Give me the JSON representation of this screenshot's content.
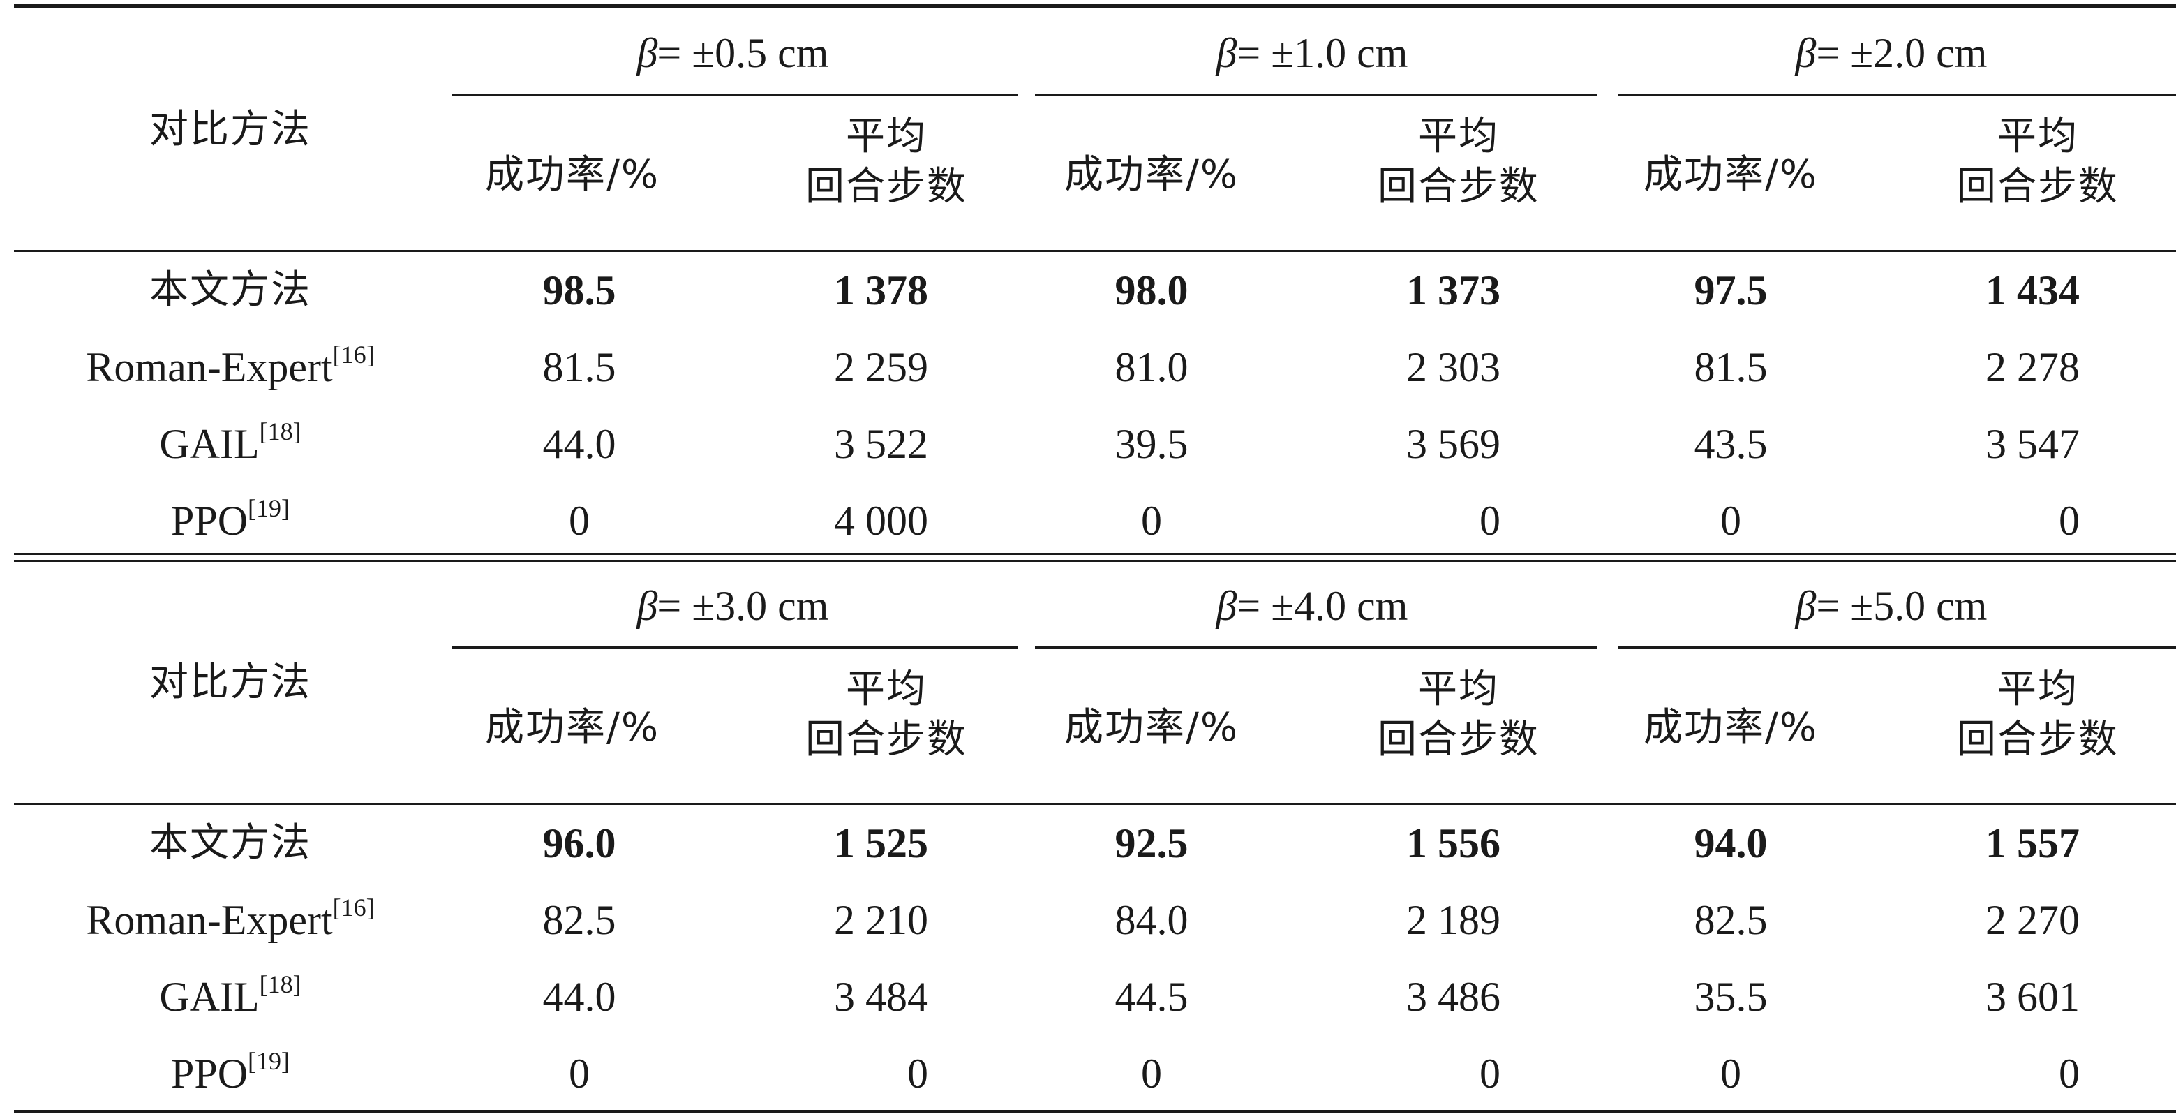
{
  "table": {
    "method_header": "对比方法",
    "success_header": "成功率/%",
    "steps_header_line1": "平均",
    "steps_header_line2": "回合步数",
    "blocks": [
      {
        "groups": [
          {
            "symbol": "β",
            "label": "= ±0.5 cm"
          },
          {
            "symbol": "β",
            "label": "= ±1.0 cm"
          },
          {
            "symbol": "β",
            "label": "= ±2.0 cm"
          }
        ],
        "rows": [
          {
            "name": "本文方法",
            "ref": "",
            "bold": true,
            "cells": [
              "98.5",
              "1 378",
              "98.0",
              "1 373",
              "97.5",
              "1 434"
            ]
          },
          {
            "name": "Roman-Expert",
            "ref": "[16]",
            "bold": false,
            "cells": [
              "81.5",
              "2 259",
              "81.0",
              "2 303",
              "81.5",
              "2 278"
            ]
          },
          {
            "name": "GAIL",
            "ref": "[18]",
            "bold": false,
            "cells": [
              "44.0",
              "3 522",
              "39.5",
              "3 569",
              "43.5",
              "3 547"
            ]
          },
          {
            "name": "PPO",
            "ref": "[19]",
            "bold": false,
            "cells": [
              "0",
              "4 000",
              "0",
              "0",
              "0",
              "0"
            ]
          }
        ]
      },
      {
        "groups": [
          {
            "symbol": "β",
            "label": "= ±3.0 cm"
          },
          {
            "symbol": "β",
            "label": "= ±4.0 cm"
          },
          {
            "symbol": "β",
            "label": "= ±5.0 cm"
          }
        ],
        "rows": [
          {
            "name": "本文方法",
            "ref": "",
            "bold": true,
            "cells": [
              "96.0",
              "1 525",
              "92.5",
              "1 556",
              "94.0",
              "1 557"
            ]
          },
          {
            "name": "Roman-Expert",
            "ref": "[16]",
            "bold": false,
            "cells": [
              "82.5",
              "2 210",
              "84.0",
              "2 189",
              "82.5",
              "2 270"
            ]
          },
          {
            "name": "GAIL",
            "ref": "[18]",
            "bold": false,
            "cells": [
              "44.0",
              "3 484",
              "44.5",
              "3 486",
              "35.5",
              "3 601"
            ]
          },
          {
            "name": "PPO",
            "ref": "[19]",
            "bold": false,
            "cells": [
              "0",
              "0",
              "0",
              "0",
              "0",
              "0"
            ]
          }
        ]
      }
    ]
  }
}
